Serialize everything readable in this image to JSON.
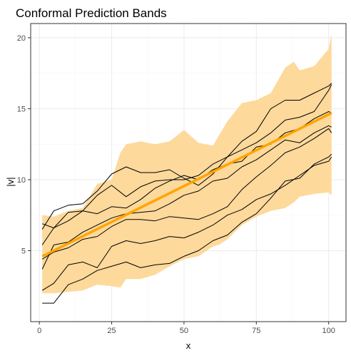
{
  "chart_data": {
    "type": "line",
    "title": "Conformal Prediction Bands",
    "xlabel": "x",
    "ylabel": "|v|",
    "xlim": [
      -3,
      106
    ],
    "ylim": [
      0,
      21
    ],
    "xticks": [
      0,
      25,
      50,
      75,
      100
    ],
    "yticks": [
      5,
      10,
      15,
      20
    ],
    "xtick_labels": [
      "0",
      "25",
      "50",
      "75",
      "100"
    ],
    "ytick_labels": [
      "5",
      "10",
      "15",
      "20"
    ],
    "grid": true,
    "colors": {
      "band": "#fdd99b",
      "fit": "#ffa500",
      "paths": "#000000",
      "panel_border": "#333333",
      "grid_major": "#ebebeb",
      "grid_minor": "#f5f5f5"
    },
    "fit": {
      "x": [
        1,
        101
      ],
      "y": [
        4.6,
        14.7
      ]
    },
    "band": {
      "x": [
        1,
        5,
        10,
        15,
        20,
        25,
        28,
        30,
        35,
        40,
        45,
        50,
        55,
        60,
        62,
        65,
        70,
        75,
        80,
        85,
        88,
        90,
        95,
        100,
        101
      ],
      "lower": [
        2.0,
        2.0,
        2.1,
        2.2,
        2.6,
        2.5,
        2.4,
        3.0,
        3.0,
        3.3,
        3.9,
        4.4,
        4.6,
        5.3,
        5.4,
        5.8,
        6.8,
        7.4,
        7.8,
        8.0,
        8.4,
        8.8,
        9.0,
        9.1,
        8.9
      ],
      "upper": [
        7.5,
        7.4,
        7.8,
        8.0,
        9.7,
        10.0,
        11.9,
        12.5,
        12.7,
        12.5,
        12.7,
        13.5,
        12.6,
        12.4,
        13.1,
        14.1,
        15.4,
        15.6,
        16.1,
        17.9,
        18.3,
        17.7,
        18.0,
        19.2,
        20.3
      ]
    },
    "paths": [
      {
        "x": [
          1,
          5,
          10,
          15,
          20,
          25,
          30,
          35,
          40,
          45,
          50,
          55,
          60,
          65,
          70,
          75,
          80,
          85,
          90,
          95,
          100,
          101
        ],
        "y": [
          6.9,
          6.6,
          7.7,
          7.8,
          8.9,
          9.6,
          8.8,
          9.5,
          9.9,
          10.0,
          10.0,
          10.3,
          11.1,
          11.6,
          12.1,
          12.6,
          13.3,
          14.2,
          14.4,
          14.8,
          16.3,
          16.7
        ]
      },
      {
        "x": [
          1,
          5,
          10,
          15,
          20,
          25,
          30,
          35,
          40,
          45,
          50,
          55,
          60,
          65,
          70,
          75,
          80,
          85,
          90,
          95,
          100,
          101
        ],
        "y": [
          6.5,
          7.8,
          8.2,
          8.3,
          9.2,
          10.4,
          10.9,
          10.5,
          10.5,
          10.7,
          10.1,
          9.6,
          10.4,
          11.6,
          12.7,
          13.4,
          15.0,
          15.6,
          15.6,
          16.1,
          16.6,
          16.8
        ]
      },
      {
        "x": [
          1,
          5,
          10,
          15,
          20,
          25,
          30,
          35,
          40,
          45,
          50,
          55,
          60,
          65,
          70,
          75,
          80,
          85,
          90,
          95,
          100,
          101
        ],
        "y": [
          5.4,
          6.6,
          7.1,
          7.8,
          7.6,
          8.1,
          8.0,
          8.6,
          9.4,
          9.9,
          10.3,
          10.0,
          10.7,
          11.1,
          11.3,
          12.3,
          12.5,
          13.3,
          13.6,
          14.3,
          14.8,
          14.7
        ]
      },
      {
        "x": [
          1,
          5,
          10,
          15,
          20,
          25,
          30,
          35,
          40,
          45,
          50,
          55,
          60,
          65,
          70,
          75,
          80,
          85,
          90,
          95,
          100,
          101
        ],
        "y": [
          3.7,
          5.4,
          5.6,
          6.3,
          6.8,
          7.3,
          7.6,
          7.7,
          7.8,
          8.3,
          8.9,
          9.2,
          9.9,
          10.1,
          10.9,
          11.4,
          12.1,
          12.8,
          12.6,
          13.3,
          13.8,
          13.7
        ]
      },
      {
        "x": [
          1,
          5,
          10,
          15,
          20,
          25,
          30,
          35,
          40,
          45,
          50,
          55,
          60,
          65,
          70,
          75,
          80,
          85,
          90,
          95,
          100,
          101
        ],
        "y": [
          4.4,
          4.9,
          5.2,
          5.8,
          6.0,
          6.7,
          7.2,
          7.2,
          7.1,
          7.4,
          7.3,
          7.2,
          7.6,
          8.1,
          9.3,
          10.2,
          11.0,
          11.9,
          12.3,
          12.9,
          13.6,
          13.3
        ]
      },
      {
        "x": [
          1,
          5,
          10,
          15,
          20,
          25,
          30,
          35,
          40,
          45,
          50,
          55,
          60,
          65,
          70,
          75,
          80,
          85,
          90,
          95,
          100,
          101
        ],
        "y": [
          2.2,
          2.7,
          4.0,
          4.2,
          3.8,
          5.3,
          5.7,
          5.5,
          5.7,
          6.0,
          5.9,
          6.3,
          6.8,
          7.5,
          7.9,
          8.6,
          9.0,
          9.6,
          10.3,
          11.0,
          11.3,
          11.6
        ]
      },
      {
        "x": [
          1,
          5,
          10,
          15,
          20,
          25,
          30,
          35,
          40,
          45,
          50,
          55,
          60,
          65,
          70,
          75,
          80,
          85,
          90,
          95,
          100,
          101
        ],
        "y": [
          1.3,
          1.3,
          2.6,
          3.0,
          3.6,
          3.9,
          4.2,
          3.8,
          4.0,
          4.1,
          4.6,
          5.0,
          5.7,
          6.1,
          7.0,
          7.6,
          8.7,
          9.9,
          10.1,
          11.1,
          11.6,
          11.8
        ]
      }
    ]
  }
}
